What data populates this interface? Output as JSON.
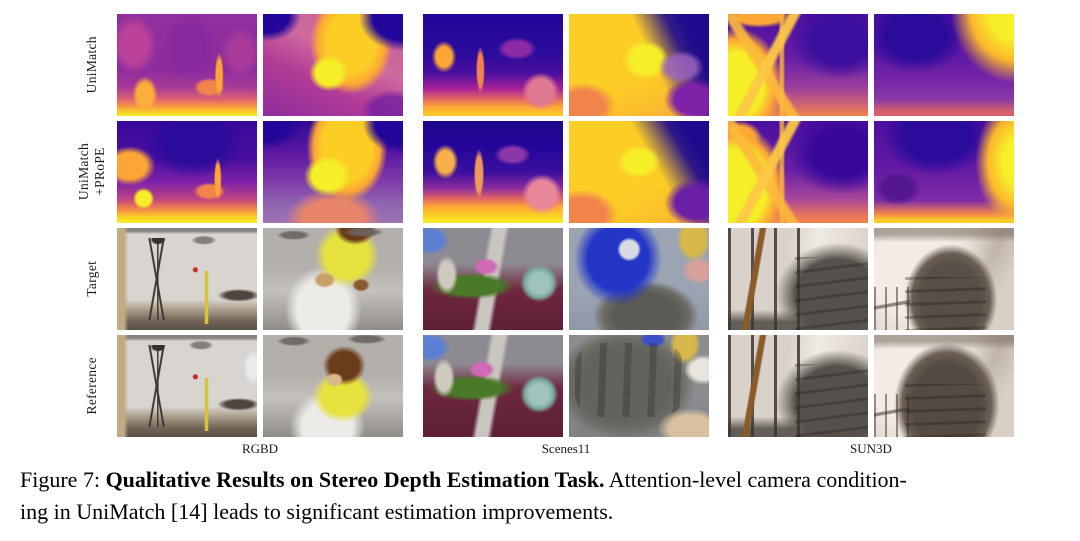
{
  "figure": {
    "row_labels": [
      {
        "lines": [
          "UniMatch"
        ]
      },
      {
        "lines": [
          "UniMatch",
          "+PRoPE"
        ]
      },
      {
        "lines": [
          "Target"
        ]
      },
      {
        "lines": [
          "Reference"
        ]
      }
    ],
    "group_labels": [
      "RGBD",
      "Scenes11",
      "SUN3D"
    ],
    "cells": [
      {
        "desc": "UniMatch depth map - RGBD room scene"
      },
      {
        "desc": "UniMatch depth map - RGBD teddy bear"
      },
      {
        "desc": "UniMatch depth map - Scenes11 chairs scene"
      },
      {
        "desc": "UniMatch depth map - Scenes11 close objects"
      },
      {
        "desc": "UniMatch depth map - SUN3D staircase railing"
      },
      {
        "desc": "UniMatch depth map - SUN3D stairwell corner"
      },
      {
        "desc": "UniMatch+PRoPE depth map - RGBD room scene"
      },
      {
        "desc": "UniMatch+PRoPE depth map - RGBD teddy bear"
      },
      {
        "desc": "UniMatch+PRoPE depth map - Scenes11 chairs scene"
      },
      {
        "desc": "UniMatch+PRoPE depth map - Scenes11 close objects"
      },
      {
        "desc": "UniMatch+PRoPE depth map - SUN3D staircase railing"
      },
      {
        "desc": "UniMatch+PRoPE depth map - SUN3D stairwell corner"
      },
      {
        "desc": "Target photo - room with tripod"
      },
      {
        "desc": "Target photo - teddy bear on stand"
      },
      {
        "desc": "Target photo - cluttered synthetic room"
      },
      {
        "desc": "Target photo - blue toy and tire"
      },
      {
        "desc": "Target photo - staircase with railing"
      },
      {
        "desc": "Target photo - stairwell corner"
      },
      {
        "desc": "Reference photo - room with tripod"
      },
      {
        "desc": "Reference photo - teddy bear on stand"
      },
      {
        "desc": "Reference photo - cluttered synthetic room"
      },
      {
        "desc": "Reference photo - blue toy and tire"
      },
      {
        "desc": "Reference photo - staircase with railing"
      },
      {
        "desc": "Reference photo - stairwell corner"
      }
    ]
  },
  "caption": {
    "line1_prefix": "Figure 7: ",
    "line1_bold": "Qualitative Results on Stereo Depth Estimation Task.",
    "line1_rest": " Attention-level camera condition-",
    "line2": "ing in UniMatch [14] leads to significant estimation improvements."
  },
  "colors": {
    "plasma_yellow": "#f6ef27",
    "plasma_orange": "#fca636",
    "plasma_magenta": "#b12a90",
    "plasma_purple": "#7e03a8",
    "plasma_navy": "#23069a"
  }
}
